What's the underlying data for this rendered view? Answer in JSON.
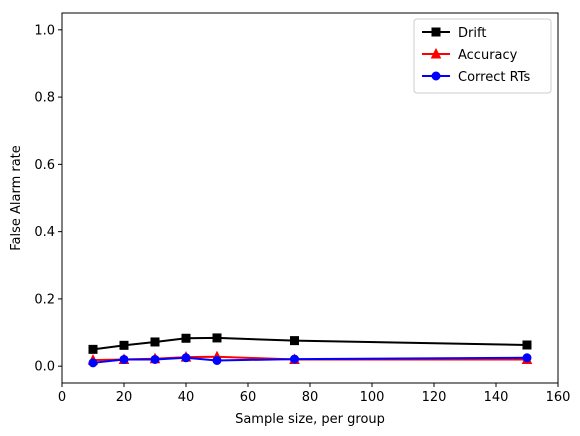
{
  "chart_data": {
    "type": "line",
    "xlabel": "Sample size, per group",
    "ylabel": "False Alarm rate",
    "xlim": [
      0,
      160
    ],
    "ylim": [
      -0.05,
      1.05
    ],
    "xticks": [
      0,
      20,
      40,
      60,
      80,
      100,
      120,
      140,
      160
    ],
    "xtick_labels": [
      "0",
      "20",
      "40",
      "60",
      "80",
      "100",
      "120",
      "140",
      "160"
    ],
    "yticks": [
      0.0,
      0.2,
      0.4,
      0.6,
      0.8,
      1.0
    ],
    "ytick_labels": [
      "0.0",
      "0.2",
      "0.4",
      "0.6",
      "0.8",
      "1.0"
    ],
    "grid": false,
    "legend_position": "top-right",
    "x": [
      10,
      20,
      30,
      40,
      50,
      75,
      150
    ],
    "series": [
      {
        "name": "Drift",
        "color": "#000000",
        "marker": "square",
        "values": [
          0.05,
          0.062,
          0.072,
          0.083,
          0.084,
          0.076,
          0.063
        ]
      },
      {
        "name": "Accuracy",
        "color": "#ff0000",
        "marker": "triangle",
        "values": [
          0.018,
          0.02,
          0.022,
          0.027,
          0.028,
          0.02,
          0.02
        ]
      },
      {
        "name": "Correct RTs",
        "color": "#0000ff",
        "marker": "circle",
        "values": [
          0.01,
          0.02,
          0.02,
          0.025,
          0.017,
          0.021,
          0.025
        ]
      }
    ]
  }
}
